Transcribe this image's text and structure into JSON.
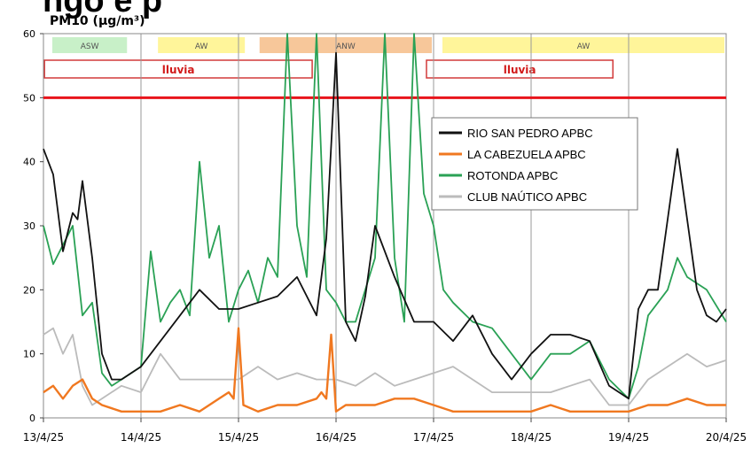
{
  "chart_data": {
    "type": "line",
    "header_fragment": "ngo e p",
    "title": "PM10 (µg/m³)",
    "ylim": [
      0,
      60
    ],
    "yticks": [
      0,
      10,
      20,
      30,
      40,
      50,
      60
    ],
    "xlim": [
      "13/4/25",
      "20/4/25"
    ],
    "xticks": [
      "13/4/25",
      "14/4/25",
      "15/4/25",
      "16/4/25",
      "17/4/25",
      "18/4/25",
      "19/4/25",
      "20/4/25"
    ],
    "limit_line": {
      "value": 50,
      "color": "#e8141c"
    },
    "period_bands": [
      {
        "label": "ASW",
        "from": "13/4/25 00:00",
        "to": "13/4/25 21:00",
        "color": "#c8f0c8"
      },
      {
        "label": "AW",
        "from": "14/4/25 02:00",
        "to": "15/4/25 02:00",
        "color": "#fff59a"
      },
      {
        "label": "ANW",
        "from": "15/4/25 03:00",
        "to": "17/4/25 00:00",
        "color": "#f7c79a"
      },
      {
        "label": "AW",
        "from": "17/4/25 00:00",
        "to": "20/4/25 00:00",
        "color": "#fff59a"
      }
    ],
    "rain_boxes": [
      {
        "label": "lluvia",
        "from": "13/4/25 02:00",
        "to": "15/4/25 19:00"
      },
      {
        "label": "lluvia",
        "from": "17/4/25 00:00",
        "to": "18/4/25 21:00"
      }
    ],
    "series": [
      {
        "name": "RIO SAN PEDRO APBC",
        "color": "#111111",
        "x": [
          0,
          0.1,
          0.2,
          0.3,
          0.35,
          0.4,
          0.5,
          0.6,
          0.7,
          0.8,
          1,
          1.2,
          1.4,
          1.6,
          1.8,
          2,
          2.2,
          2.4,
          2.6,
          2.8,
          2.9,
          3,
          3.1,
          3.2,
          3.3,
          3.4,
          3.6,
          3.8,
          4,
          4.2,
          4.4,
          4.6,
          4.8,
          5,
          5.2,
          5.4,
          5.6,
          5.8,
          6,
          6.1,
          6.2,
          6.3,
          6.5,
          6.7,
          6.8,
          6.9,
          7
        ],
        "y": [
          42,
          38,
          26,
          32,
          31,
          37,
          25,
          10,
          6,
          6,
          8,
          12,
          16,
          20,
          17,
          17,
          18,
          19,
          22,
          16,
          28,
          57,
          15,
          12,
          19,
          30,
          22,
          15,
          15,
          12,
          16,
          10,
          6,
          10,
          13,
          13,
          12,
          5,
          3,
          17,
          20,
          20,
          42,
          20,
          16,
          15,
          17
        ]
      },
      {
        "name": "LA CABEZUELA  APBC",
        "color": "#f07820",
        "x": [
          0,
          0.1,
          0.2,
          0.3,
          0.4,
          0.5,
          0.6,
          0.8,
          1,
          1.2,
          1.4,
          1.6,
          1.8,
          1.9,
          1.95,
          2.0,
          2.05,
          2.2,
          2.4,
          2.6,
          2.8,
          2.85,
          2.9,
          2.95,
          3.0,
          3.1,
          3.2,
          3.4,
          3.6,
          3.8,
          4,
          4.2,
          4.4,
          4.6,
          4.8,
          5,
          5.2,
          5.4,
          5.6,
          5.8,
          6,
          6.2,
          6.4,
          6.6,
          6.8,
          7
        ],
        "y": [
          4,
          5,
          3,
          5,
          6,
          3,
          2,
          1,
          1,
          1,
          2,
          1,
          3,
          4,
          3,
          14,
          2,
          1,
          2,
          2,
          3,
          4,
          3,
          13,
          1,
          2,
          2,
          2,
          3,
          3,
          2,
          1,
          1,
          1,
          1,
          1,
          2,
          1,
          1,
          1,
          1,
          2,
          2,
          3,
          2,
          2
        ]
      },
      {
        "name": "ROTONDA  APBC",
        "color": "#2aa155",
        "x": [
          0,
          0.1,
          0.2,
          0.3,
          0.4,
          0.5,
          0.6,
          0.7,
          0.8,
          1,
          1.1,
          1.2,
          1.3,
          1.4,
          1.5,
          1.6,
          1.7,
          1.8,
          1.9,
          2,
          2.1,
          2.2,
          2.3,
          2.4,
          2.5,
          2.6,
          2.7,
          2.8,
          2.9,
          3,
          3.1,
          3.2,
          3.3,
          3.4,
          3.5,
          3.6,
          3.7,
          3.8,
          3.9,
          4,
          4.1,
          4.2,
          4.4,
          4.6,
          4.8,
          5,
          5.2,
          5.4,
          5.6,
          5.8,
          6,
          6.1,
          6.2,
          6.4,
          6.5,
          6.6,
          6.8,
          7
        ],
        "y": [
          30,
          24,
          27,
          30,
          16,
          18,
          7,
          5,
          6,
          8,
          26,
          15,
          18,
          20,
          16,
          40,
          25,
          30,
          15,
          20,
          23,
          18,
          25,
          22,
          60,
          30,
          22,
          60,
          20,
          18,
          15,
          15,
          20,
          25,
          60,
          25,
          15,
          70,
          35,
          30,
          20,
          18,
          15,
          14,
          10,
          6,
          10,
          10,
          12,
          6,
          3,
          8,
          16,
          20,
          25,
          22,
          20,
          15
        ]
      },
      {
        "name": "CLUB NAÚTICO  APBC",
        "color": "#bbbbbb",
        "x": [
          0,
          0.1,
          0.2,
          0.3,
          0.4,
          0.5,
          0.6,
          0.8,
          1,
          1.2,
          1.4,
          1.6,
          1.8,
          2,
          2.2,
          2.4,
          2.6,
          2.8,
          3,
          3.2,
          3.4,
          3.6,
          3.8,
          4,
          4.2,
          4.4,
          4.6,
          4.8,
          5,
          5.2,
          5.4,
          5.6,
          5.8,
          6,
          6.2,
          6.4,
          6.6,
          6.8,
          7
        ],
        "y": [
          13,
          14,
          10,
          13,
          5,
          2,
          3,
          5,
          4,
          10,
          6,
          6,
          6,
          6,
          8,
          6,
          7,
          6,
          6,
          5,
          7,
          5,
          6,
          7,
          8,
          6,
          4,
          4,
          4,
          4,
          5,
          6,
          2,
          2,
          6,
          8,
          10,
          8,
          9
        ]
      }
    ],
    "legend_position": "top-right",
    "grid": {
      "vertical": true,
      "horizontal": false
    }
  }
}
